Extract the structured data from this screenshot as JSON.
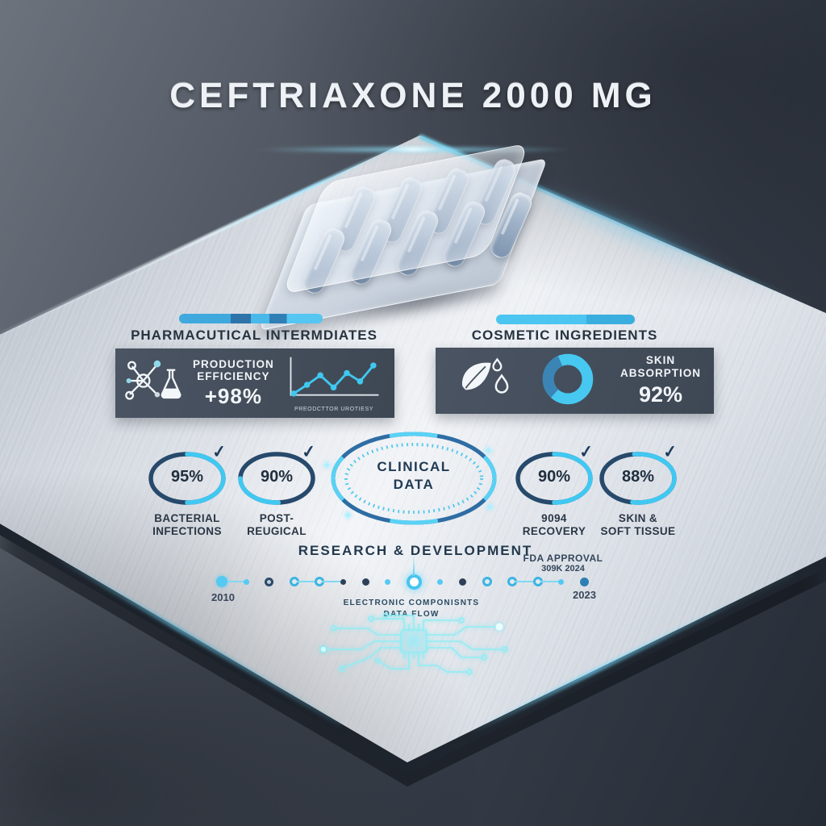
{
  "title": "CEFTRIAXONE 2000 MG",
  "left_section": {
    "header": "PHARMACUTICAL INTERMDIATES",
    "card": {
      "icon": "molecule-flask-icon",
      "label_line1": "PRODUCTION",
      "label_line2": "EFFICIENCY",
      "value": "+98%",
      "chart_caption": "PREODCTTOR UROTIESY"
    }
  },
  "right_section": {
    "header": "COSMETIC INGREDIENTS",
    "card": {
      "icon": "leaf-droplets-icon",
      "label_line1": "SKIN",
      "label_line2": "ABSORPTION",
      "value": "92%"
    }
  },
  "stats": [
    {
      "value": "95%",
      "check": "✓",
      "label_line1": "BACTERIAL",
      "label_line2": "INFECTIONS"
    },
    {
      "value": "90%",
      "check": "✓",
      "label_line1": "POST-",
      "label_line2": "REUGICAL"
    },
    {
      "value": "90%",
      "check": "✓",
      "label_line1": "9094",
      "label_line2": "RECOVERY"
    },
    {
      "value": "88%",
      "check": "✓",
      "label_line1": "SKIN &",
      "label_line2": "SOFT TISSUE"
    }
  ],
  "clinical_badge": {
    "line1": "CLINICAL",
    "line2": "DATA"
  },
  "timeline": {
    "title": "RESEARCH & DEVELOPMENT",
    "fda_label": "FDA APPROVAL",
    "fda_value": "309K 2024",
    "start_year": "2010",
    "end_year": "2023",
    "dots": [
      {
        "style": "lg-cyan",
        "link": true
      },
      {
        "style": "sm-cyan",
        "link": false
      },
      {
        "style": "ring-dark",
        "link": false
      },
      {
        "style": "ring-cyan",
        "link": true
      },
      {
        "style": "ring-cyan",
        "link": true
      },
      {
        "style": "sm-dark",
        "link": false
      },
      {
        "style": "md-dark",
        "link": false
      },
      {
        "style": "sm-cyan",
        "link": false
      },
      {
        "style": "center",
        "link": false
      },
      {
        "style": "sm-cyan",
        "link": false
      },
      {
        "style": "md-dark",
        "link": false
      },
      {
        "style": "ring-cyan",
        "link": false
      },
      {
        "style": "ring-cyan",
        "link": true
      },
      {
        "style": "ring-cyan",
        "link": true
      },
      {
        "style": "sm-cyan",
        "link": false
      },
      {
        "style": "md-darkblue",
        "link": false
      }
    ]
  },
  "footer": {
    "line1": "ELECTRONIC COMPONISNTS",
    "line2": "DATA FLOW",
    "icon": "cpu-chip-circuit-icon"
  },
  "blister": {
    "back_row": 4,
    "front_row": 5
  },
  "colors": {
    "accent_cyan": "#41c8f2",
    "accent_blue": "#2e6da4",
    "ring_navy": "#27496b",
    "card_bg": "#46505d",
    "panel_light": "#eef1f5",
    "panel_dark": "#b6bdc7",
    "background_dark": "#2a303a",
    "text_dark": "#27333f",
    "glow": "#58d8ff"
  },
  "chart_data": [
    {
      "type": "line",
      "title": "production efficiency sparkline",
      "series": [
        {
          "name": "trend",
          "values": [
            12,
            35,
            60,
            28,
            66,
            44,
            86
          ]
        }
      ],
      "xlabel": "",
      "ylabel": "",
      "caption": "PREODCTTOR UROTIESY",
      "grid": false,
      "axes": "plain L-axes, unlabeled"
    },
    {
      "type": "pie",
      "title": "SKIN ABSORPTION donut",
      "value_label": "92%",
      "segments": [
        {
          "name": "cyan",
          "pct": 68
        },
        {
          "name": "blue",
          "pct": 32
        }
      ]
    },
    {
      "type": "table",
      "title": "clinical outcome rings",
      "categories": [
        "BACTERIAL INFECTIONS",
        "POST- REUGICAL",
        "9094 RECOVERY",
        "SKIN & SOFT TISSUE"
      ],
      "values": [
        95,
        90,
        90,
        88
      ]
    },
    {
      "type": "line",
      "title": "R&D timeline",
      "x": [
        "2010",
        "2023"
      ],
      "annotations": [
        "RESEARCH & DEVELOPMENT",
        "FDA APPROVAL 309K 2024"
      ]
    }
  ]
}
